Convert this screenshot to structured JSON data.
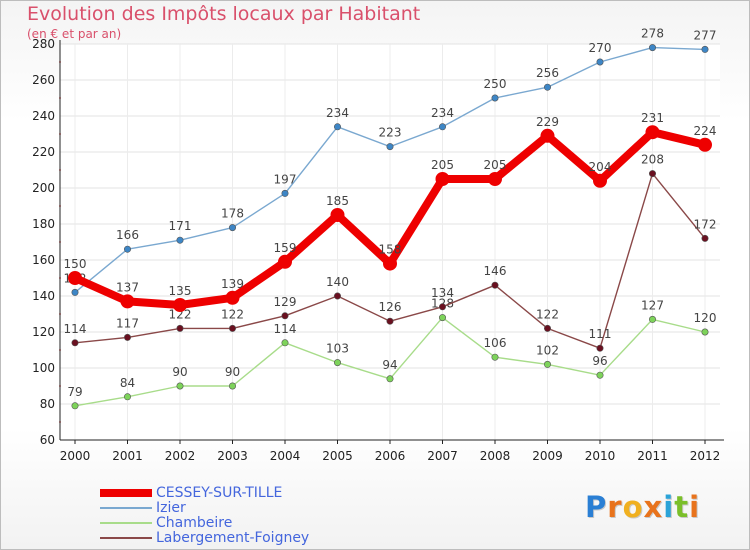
{
  "title": "Evolution des Impôts locaux par Habitant",
  "subtitle": "(en € et par an)",
  "logo": {
    "letters": [
      "P",
      "r",
      "o",
      "x",
      "i",
      "t",
      "i"
    ],
    "colors": [
      "#2a7fd4",
      "#e8731c",
      "#f0b020",
      "#e8731c",
      "#2aa3d8",
      "#7bbf2a",
      "#e8731c"
    ]
  },
  "chart_data": {
    "type": "line",
    "title": "Evolution des Impôts locaux par Habitant",
    "subtitle": "(en € et par an)",
    "xlabel": "",
    "ylabel": "",
    "ylim": [
      60,
      280
    ],
    "yticks": [
      60,
      80,
      100,
      120,
      140,
      160,
      180,
      200,
      220,
      240,
      260,
      280
    ],
    "categories": [
      "2000",
      "2001",
      "2002",
      "2003",
      "2004",
      "2005",
      "2006",
      "2007",
      "2008",
      "2009",
      "2010",
      "2011",
      "2012"
    ],
    "grid": true,
    "legend_position": "bottom-left",
    "series": [
      {
        "name": "CESSEY-SUR-TILLE",
        "color": "#ee0000",
        "marker_color": "#ee0000",
        "highlight": true,
        "values": [
          150,
          137,
          135,
          139,
          159,
          185,
          158,
          205,
          205,
          229,
          204,
          231,
          224
        ]
      },
      {
        "name": "Izier",
        "color": "#7aa8d0",
        "marker_color": "#3d86c6",
        "highlight": false,
        "values": [
          142,
          166,
          171,
          178,
          197,
          234,
          223,
          234,
          250,
          256,
          270,
          278,
          277
        ]
      },
      {
        "name": "Chambeire",
        "color": "#a8dc8a",
        "marker_color": "#7dd35a",
        "highlight": false,
        "values": [
          79,
          84,
          90,
          90,
          114,
          103,
          94,
          128,
          106,
          102,
          96,
          127,
          120
        ]
      },
      {
        "name": "Labergement-Foigney",
        "color": "#8a4848",
        "marker_color": "#6a1020",
        "highlight": false,
        "values": [
          114,
          117,
          122,
          122,
          129,
          140,
          126,
          134,
          146,
          122,
          111,
          208,
          172
        ]
      }
    ]
  }
}
